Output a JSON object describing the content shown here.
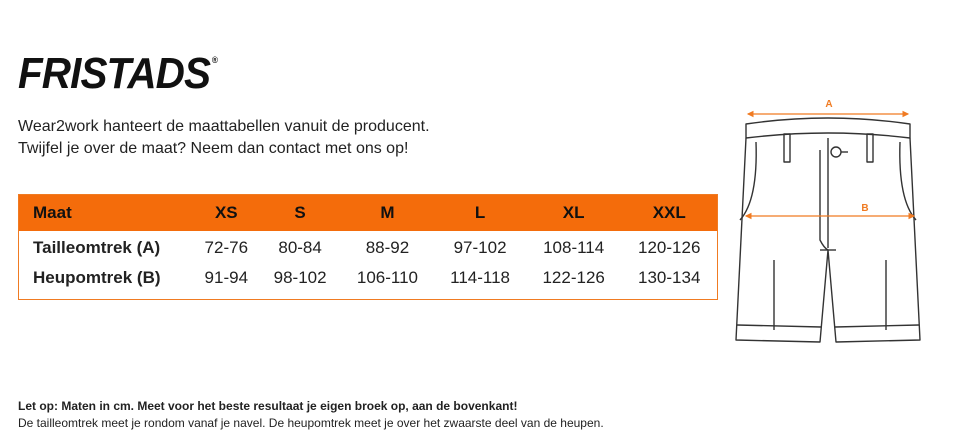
{
  "brand": {
    "logo_text": "FRISTADS",
    "reg_mark": "®"
  },
  "intro": {
    "line1": "Wear2work hanteert de maattabellen vanuit de producent.",
    "line2": "Twijfel je over de maat? Neem dan contact met ons op!"
  },
  "size_table": {
    "headers": [
      "Maat",
      "XS",
      "S",
      "M",
      "L",
      "XL",
      "XXL"
    ],
    "rows": [
      {
        "label": "Tailleomtrek (A)",
        "values": [
          "72-76",
          "80-84",
          "88-92",
          "97-102",
          "108-114",
          "120-126"
        ]
      },
      {
        "label": "Heupomtrek (B)",
        "values": [
          "91-94",
          "98-102",
          "106-110",
          "114-118",
          "122-126",
          "130-134"
        ]
      }
    ]
  },
  "diagram": {
    "label_a": "A",
    "label_b": "B",
    "accent_color": "#f07b22"
  },
  "note": {
    "bold_line": "Let op: Maten in cm. Meet voor het beste resultaat je eigen broek op, aan de bovenkant!",
    "line2": "De tailleomtrek meet je rondom vanaf je navel. De heupomtrek meet je over het zwaarste deel van de heupen."
  }
}
